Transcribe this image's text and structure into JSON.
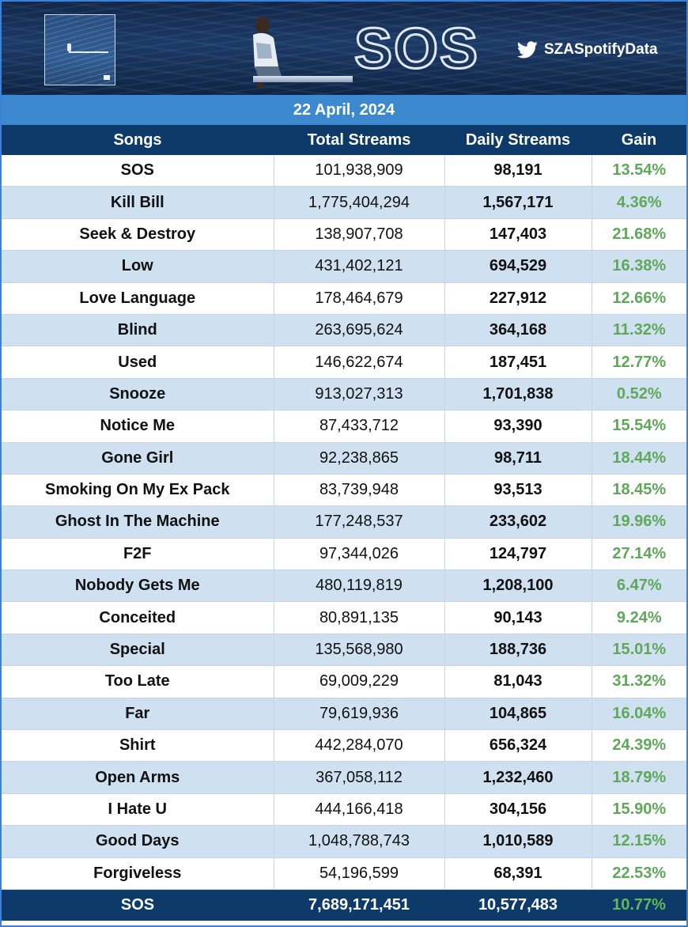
{
  "banner": {
    "logo_text": "SOS",
    "twitter_handle": "SZASpotifyData",
    "icons": [
      "album-cover",
      "twitter-bird-icon"
    ]
  },
  "date": "22 April, 2024",
  "columns": [
    "Songs",
    "Total Streams",
    "Daily Streams",
    "Gain"
  ],
  "rows": [
    {
      "song": "SOS",
      "total": "101,938,909",
      "daily": "98,191",
      "gain": "13.54%"
    },
    {
      "song": "Kill Bill",
      "total": "1,775,404,294",
      "daily": "1,567,171",
      "gain": "4.36%"
    },
    {
      "song": "Seek & Destroy",
      "total": "138,907,708",
      "daily": "147,403",
      "gain": "21.68%"
    },
    {
      "song": "Low",
      "total": "431,402,121",
      "daily": "694,529",
      "gain": "16.38%"
    },
    {
      "song": "Love Language",
      "total": "178,464,679",
      "daily": "227,912",
      "gain": "12.66%"
    },
    {
      "song": "Blind",
      "total": "263,695,624",
      "daily": "364,168",
      "gain": "11.32%"
    },
    {
      "song": "Used",
      "total": "146,622,674",
      "daily": "187,451",
      "gain": "12.77%"
    },
    {
      "song": "Snooze",
      "total": "913,027,313",
      "daily": "1,701,838",
      "gain": "0.52%"
    },
    {
      "song": "Notice Me",
      "total": "87,433,712",
      "daily": "93,390",
      "gain": "15.54%"
    },
    {
      "song": "Gone Girl",
      "total": "92,238,865",
      "daily": "98,711",
      "gain": "18.44%"
    },
    {
      "song": "Smoking On My Ex Pack",
      "total": "83,739,948",
      "daily": "93,513",
      "gain": "18.45%"
    },
    {
      "song": "Ghost In The Machine",
      "total": "177,248,537",
      "daily": "233,602",
      "gain": "19.96%"
    },
    {
      "song": "F2F",
      "total": "97,344,026",
      "daily": "124,797",
      "gain": "27.14%"
    },
    {
      "song": "Nobody Gets Me",
      "total": "480,119,819",
      "daily": "1,208,100",
      "gain": "6.47%"
    },
    {
      "song": "Conceited",
      "total": "80,891,135",
      "daily": "90,143",
      "gain": "9.24%"
    },
    {
      "song": "Special",
      "total": "135,568,980",
      "daily": "188,736",
      "gain": "15.01%"
    },
    {
      "song": "Too Late",
      "total": "69,009,229",
      "daily": "81,043",
      "gain": "31.32%"
    },
    {
      "song": "Far",
      "total": "79,619,936",
      "daily": "104,865",
      "gain": "16.04%"
    },
    {
      "song": "Shirt",
      "total": "442,284,070",
      "daily": "656,324",
      "gain": "24.39%"
    },
    {
      "song": "Open Arms",
      "total": "367,058,112",
      "daily": "1,232,460",
      "gain": "18.79%"
    },
    {
      "song": "I Hate U",
      "total": "444,166,418",
      "daily": "304,156",
      "gain": "15.90%"
    },
    {
      "song": "Good Days",
      "total": "1,048,788,743",
      "daily": "1,010,589",
      "gain": "12.15%"
    },
    {
      "song": "Forgiveless",
      "total": "54,196,599",
      "daily": "68,391",
      "gain": "22.53%"
    }
  ],
  "total_row": {
    "song": "SOS",
    "total": "7,689,171,451",
    "daily": "10,577,483",
    "gain": "10.77%"
  },
  "colors": {
    "header_navy": "#0d3a69",
    "date_blue": "#3d89cf",
    "row_alt": "#cfe0f0",
    "gain_green": "#5fa85a"
  }
}
